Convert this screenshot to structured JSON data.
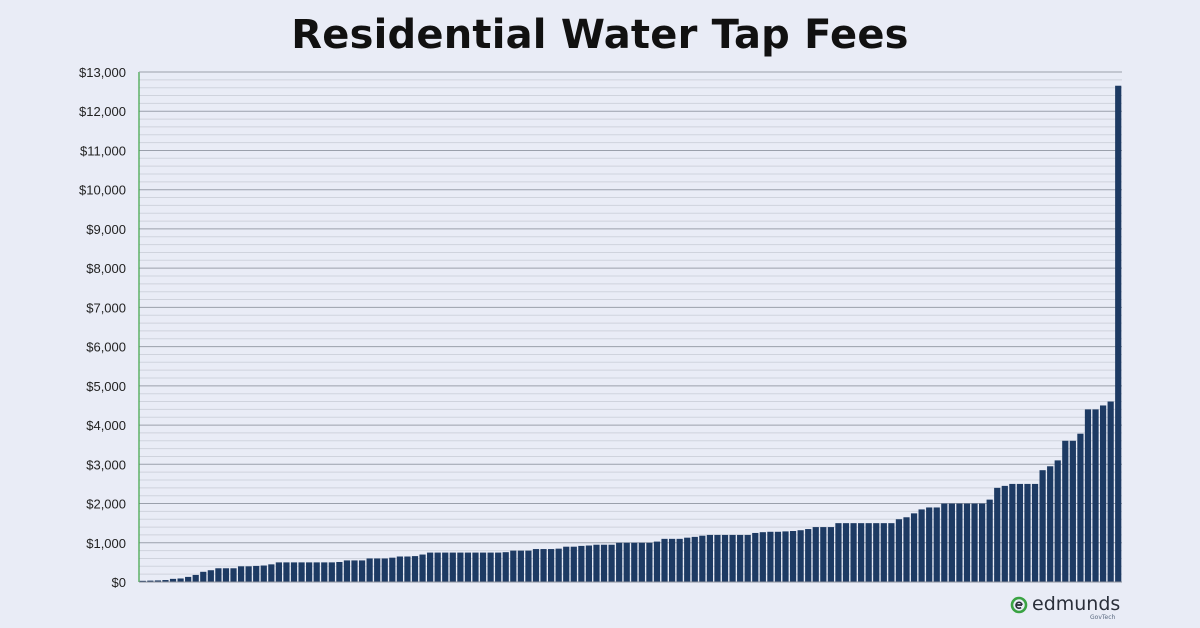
{
  "title": "Residential Water Tap Fees",
  "brand": {
    "name": "edmunds",
    "sub": "GovTech",
    "accent": "#3aa343"
  },
  "chart_data": {
    "type": "bar",
    "title": "Residential Water Tap Fees",
    "xlabel": "",
    "ylabel": "",
    "ylim": [
      0,
      13000
    ],
    "y_ticks": [
      "$0",
      "$1,000",
      "$2,000",
      "$3,000",
      "$4,000",
      "$5,000",
      "$6,000",
      "$7,000",
      "$8,000",
      "$9,000",
      "$10,000",
      "$11,000",
      "$12,000",
      "$13,000"
    ],
    "grid": true,
    "legend": "none",
    "bar_color": "#1d3a63",
    "values": [
      30,
      35,
      40,
      50,
      80,
      90,
      130,
      180,
      260,
      300,
      350,
      350,
      350,
      400,
      400,
      410,
      420,
      450,
      500,
      500,
      500,
      500,
      500,
      500,
      500,
      500,
      510,
      550,
      550,
      550,
      600,
      600,
      600,
      620,
      650,
      650,
      660,
      700,
      750,
      750,
      750,
      750,
      750,
      750,
      750,
      750,
      750,
      750,
      760,
      800,
      800,
      800,
      840,
      840,
      840,
      850,
      900,
      900,
      920,
      930,
      950,
      950,
      950,
      1000,
      1000,
      1000,
      1000,
      1000,
      1030,
      1100,
      1100,
      1100,
      1130,
      1150,
      1180,
      1200,
      1200,
      1200,
      1200,
      1200,
      1200,
      1250,
      1270,
      1280,
      1280,
      1290,
      1300,
      1320,
      1350,
      1400,
      1400,
      1400,
      1500,
      1500,
      1500,
      1500,
      1500,
      1500,
      1500,
      1500,
      1600,
      1650,
      1750,
      1850,
      1900,
      1900,
      2000,
      2000,
      2000,
      2000,
      2000,
      2000,
      2100,
      2400,
      2450,
      2500,
      2500,
      2500,
      2500,
      2850,
      2950,
      3100,
      3600,
      3600,
      3780,
      4400,
      4400,
      4500,
      4600,
      12650
    ]
  }
}
